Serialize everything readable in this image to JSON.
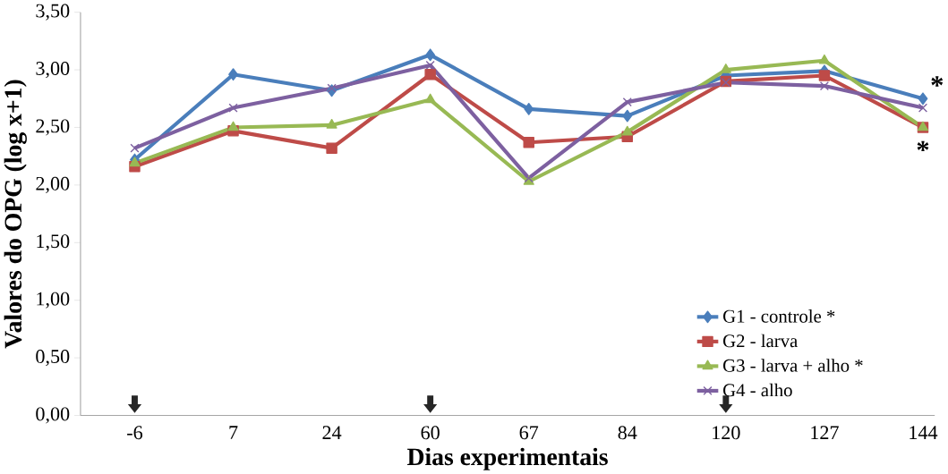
{
  "chart_data": {
    "type": "line",
    "xlabel": "Dias experimentais",
    "ylabel": "Valores do OPG (log x+1)",
    "categories": [
      "-6",
      "7",
      "24",
      "60",
      "67",
      "84",
      "120",
      "127",
      "144"
    ],
    "series": [
      {
        "name": "G1 - controle *",
        "color": "#4a7ebb",
        "marker": "diamond",
        "values": [
          2.22,
          2.96,
          2.82,
          3.13,
          2.66,
          2.6,
          2.95,
          2.99,
          2.75
        ]
      },
      {
        "name": "G2 - larva",
        "color": "#be4b48",
        "marker": "square",
        "values": [
          2.16,
          2.47,
          2.32,
          2.96,
          2.37,
          2.42,
          2.9,
          2.95,
          2.5
        ]
      },
      {
        "name": "G3 - larva + alho *",
        "color": "#98b954",
        "marker": "triangle",
        "values": [
          2.19,
          2.5,
          2.52,
          2.74,
          2.03,
          2.46,
          3.0,
          3.08,
          2.5
        ]
      },
      {
        "name": "G4 - alho",
        "color": "#7d60a0",
        "marker": "cross",
        "values": [
          2.32,
          2.67,
          2.84,
          3.04,
          2.06,
          2.72,
          2.89,
          2.86,
          2.67
        ]
      }
    ],
    "ylim": [
      0,
      3.5
    ],
    "yticks": [
      {
        "value": 0,
        "label": "0,00"
      },
      {
        "value": 0.5,
        "label": "0,50"
      },
      {
        "value": 1,
        "label": "1,00"
      },
      {
        "value": 1.5,
        "label": "1,50"
      },
      {
        "value": 2,
        "label": "2,00"
      },
      {
        "value": 2.5,
        "label": "2,50"
      },
      {
        "value": 3,
        "label": "3,00"
      },
      {
        "value": 3.5,
        "label": "3,50"
      }
    ],
    "grid": false,
    "legend": "bottom right",
    "annotations": [
      {
        "text": "*",
        "x": "144",
        "y": 2.75
      },
      {
        "text": "*",
        "x": "144",
        "y": 2.5
      }
    ]
  }
}
